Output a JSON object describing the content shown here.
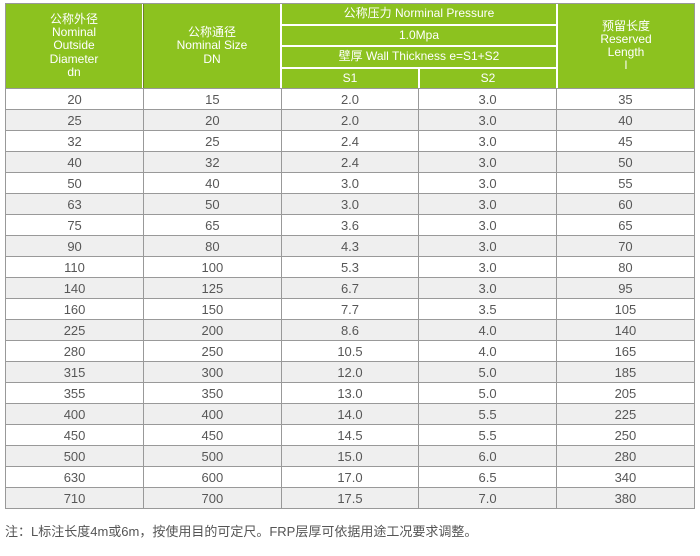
{
  "page": {
    "note": "注：L标注长度4m或6m，按使用目的可定尺。FRP层厚可依据用途工况要求调整。"
  },
  "colors": {
    "header_green": "#8cc21f",
    "header_text": "#ffffff",
    "row_stripe": "#efefef",
    "grid_border": "#999999",
    "body_text": "#575757"
  },
  "table": {
    "header": {
      "outside_diameter_lines": [
        "公称外径",
        "Nominal",
        "Outside",
        "Diameter",
        "dn"
      ],
      "nominal_size_lines": [
        "公称通径",
        "Nominal Size",
        "DN"
      ],
      "pressure_title": "公称压力 Norminal Pressure",
      "pressure_value": "1.0Mpa",
      "wall_thickness_title": "壁厚 Wall Thickness e=S1+S2",
      "s1_label": "S1",
      "s2_label": "S2",
      "reserved_length_lines": [
        "预留长度",
        "Reserved",
        "Length",
        "l"
      ]
    },
    "rows": [
      [
        "20",
        "15",
        "2.0",
        "3.0",
        "35"
      ],
      [
        "25",
        "20",
        "2.0",
        "3.0",
        "40"
      ],
      [
        "32",
        "25",
        "2.4",
        "3.0",
        "45"
      ],
      [
        "40",
        "32",
        "2.4",
        "3.0",
        "50"
      ],
      [
        "50",
        "40",
        "3.0",
        "3.0",
        "55"
      ],
      [
        "63",
        "50",
        "3.0",
        "3.0",
        "60"
      ],
      [
        "75",
        "65",
        "3.6",
        "3.0",
        "65"
      ],
      [
        "90",
        "80",
        "4.3",
        "3.0",
        "70"
      ],
      [
        "110",
        "100",
        "5.3",
        "3.0",
        "80"
      ],
      [
        "140",
        "125",
        "6.7",
        "3.0",
        "95"
      ],
      [
        "160",
        "150",
        "7.7",
        "3.5",
        "105"
      ],
      [
        "225",
        "200",
        "8.6",
        "4.0",
        "140"
      ],
      [
        "280",
        "250",
        "10.5",
        "4.0",
        "165"
      ],
      [
        "315",
        "300",
        "12.0",
        "5.0",
        "185"
      ],
      [
        "355",
        "350",
        "13.0",
        "5.0",
        "205"
      ],
      [
        "400",
        "400",
        "14.0",
        "5.5",
        "225"
      ],
      [
        "450",
        "450",
        "14.5",
        "5.5",
        "250"
      ],
      [
        "500",
        "500",
        "15.0",
        "6.0",
        "280"
      ],
      [
        "630",
        "600",
        "17.0",
        "6.5",
        "340"
      ],
      [
        "710",
        "700",
        "17.5",
        "7.0",
        "380"
      ]
    ]
  }
}
